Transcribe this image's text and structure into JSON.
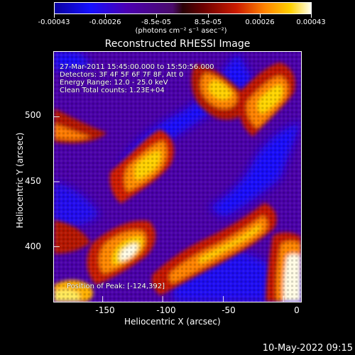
{
  "colorbar": {
    "tick_labels": [
      "-0.00043",
      "-0.00026",
      "-8.5e-05",
      "8.5e-05",
      "0.00026",
      "0.00043"
    ],
    "units_label": "(photons cm⁻² s⁻¹ asec⁻²)"
  },
  "image": {
    "title": "Reconstructed RHESSI Image",
    "info": {
      "time": "27-Mar-2011 15:45:00.000 to 15:50:56.000",
      "detectors": "Detectors: 3F 4F 5F 6F 7F 8F, Att 0",
      "energy": "Energy Range: 12.0 - 25.0 keV",
      "clean": "Clean    Total counts: 1.23E+04"
    },
    "peak_position": "Position of Peak: [-124,392]"
  },
  "axes": {
    "x_label": "Heliocentric X (arcsec)",
    "y_label": "Heliocentric Y (arcsec)",
    "x_ticks": [
      "-150",
      "-100",
      "-50",
      "0"
    ],
    "y_ticks": [
      "500",
      "450",
      "400"
    ]
  },
  "footer": {
    "timestamp": "10-May-2022 09:15"
  },
  "colors": {
    "background": "#000000",
    "low": "#1610ff",
    "mid": "#5000b0",
    "high": "#ffd100",
    "peak": "#fffff0"
  }
}
